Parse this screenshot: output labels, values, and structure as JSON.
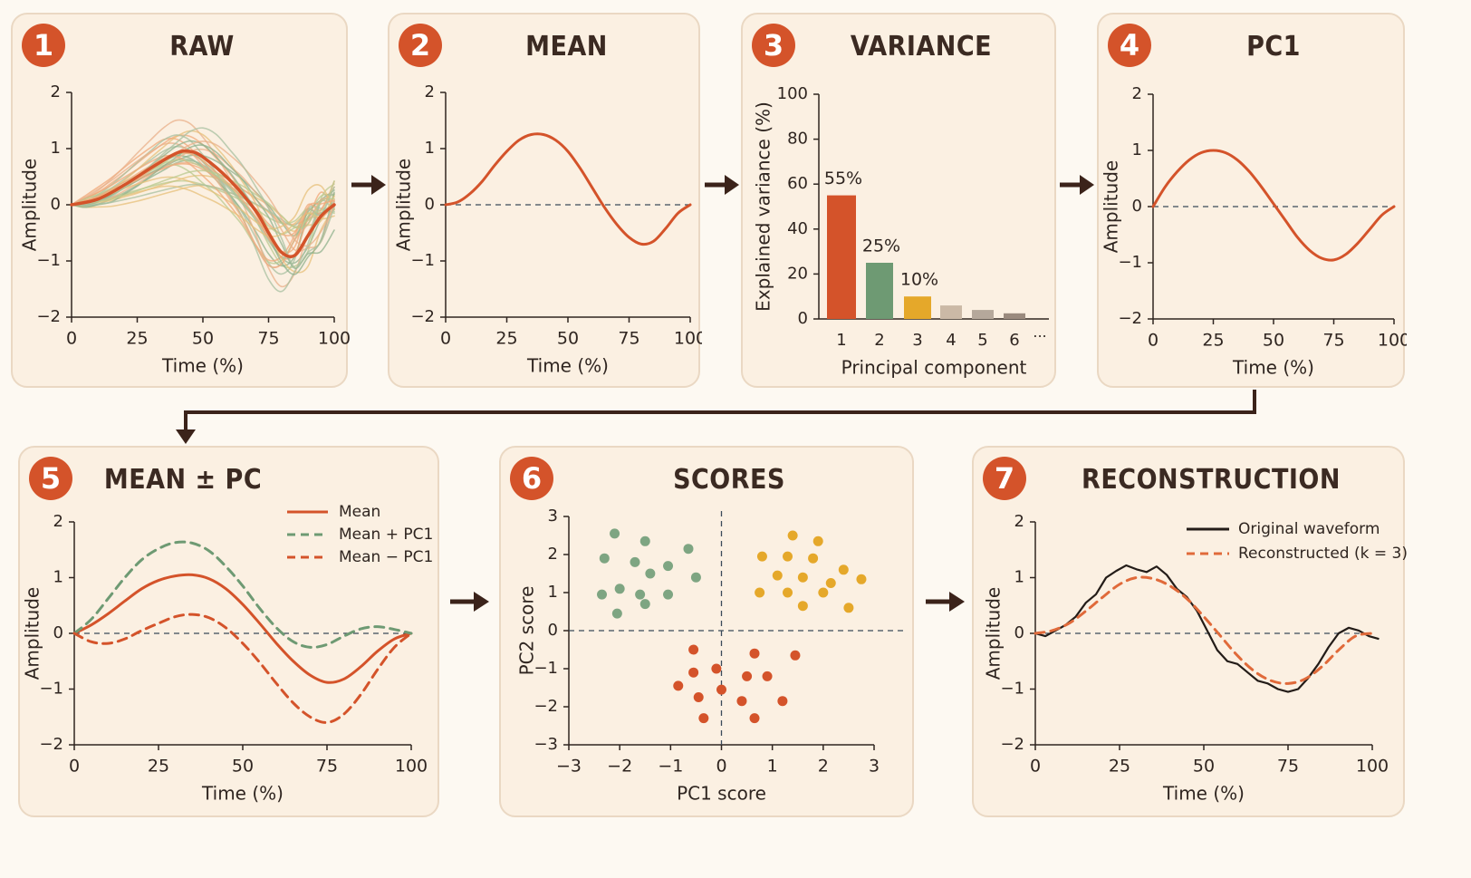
{
  "colors": {
    "accent": "#d4532a",
    "green": "#6e9a73",
    "yellow": "#e5a82a",
    "gray": "#b5a89b",
    "dark": "#2a1f1a"
  },
  "panels": [
    {
      "number": "1",
      "title": "RAW"
    },
    {
      "number": "2",
      "title": "MEAN"
    },
    {
      "number": "3",
      "title": "VARIANCE"
    },
    {
      "number": "4",
      "title": "PC1"
    },
    {
      "number": "5",
      "title": "MEAN ± PC"
    },
    {
      "number": "6",
      "title": "SCORES"
    },
    {
      "number": "7",
      "title": "RECONSTRUCTION"
    }
  ],
  "chart_data": [
    {
      "type": "line",
      "title": "RAW",
      "xlabel": "Time (%)",
      "ylabel": "Amplitude",
      "xlim": [
        0,
        100
      ],
      "ylim": [
        -2,
        2
      ],
      "xticks": [
        "0",
        "25",
        "50",
        "75",
        "100"
      ],
      "yticks": [
        "2",
        "1",
        "0",
        "−1",
        "−2"
      ],
      "series": [
        {
          "values_x": [
            0,
            10,
            20,
            30,
            40,
            45,
            50,
            60,
            70,
            75,
            80,
            85,
            90,
            95,
            100
          ],
          "values_y": [
            0,
            0.1,
            0.35,
            0.65,
            0.92,
            0.95,
            0.85,
            0.45,
            -0.1,
            -0.5,
            -0.85,
            -0.9,
            -0.55,
            -0.2,
            0
          ]
        }
      ],
      "background_curves": 30
    },
    {
      "type": "line",
      "title": "MEAN",
      "xlabel": "Time (%)",
      "ylabel": "Amplitude",
      "xlim": [
        0,
        100
      ],
      "ylim": [
        -2,
        2
      ],
      "xticks": [
        "0",
        "25",
        "50",
        "75",
        "100"
      ],
      "yticks": [
        "2",
        "1",
        "0",
        "−1",
        "−2"
      ],
      "series": [
        {
          "values_x": [
            0,
            5,
            10,
            15,
            20,
            25,
            30,
            35,
            40,
            45,
            50,
            55,
            60,
            65,
            70,
            75,
            80,
            85,
            90,
            95,
            100
          ],
          "values_y": [
            0,
            0.05,
            0.2,
            0.42,
            0.7,
            0.95,
            1.15,
            1.25,
            1.25,
            1.15,
            0.95,
            0.65,
            0.3,
            -0.05,
            -0.35,
            -0.58,
            -0.7,
            -0.65,
            -0.42,
            -0.15,
            0
          ]
        }
      ],
      "baseline": 0
    },
    {
      "type": "bar",
      "title": "VARIANCE",
      "xlabel": "Principal component",
      "ylabel": "Explained variance (%)",
      "ylim": [
        0,
        100
      ],
      "categories": [
        "1",
        "2",
        "3",
        "4",
        "5",
        "6"
      ],
      "extra_tick": "···",
      "values": [
        55,
        25,
        10,
        6,
        4,
        2.5
      ],
      "data_labels": [
        "55%",
        "25%",
        "10%",
        "",
        "",
        ""
      ],
      "bar_colors": [
        "#d4532a",
        "#6e9a73",
        "#e5a82a",
        "#cbb9a6",
        "#b5a89b",
        "#9a8a7e"
      ],
      "yticks": [
        "100",
        "80",
        "60",
        "40",
        "20",
        "0"
      ]
    },
    {
      "type": "line",
      "title": "PC1",
      "xlabel": "Time (%)",
      "ylabel": "Amplitude",
      "xlim": [
        0,
        100
      ],
      "ylim": [
        -2,
        2
      ],
      "xticks": [
        "0",
        "25",
        "50",
        "75",
        "100"
      ],
      "yticks": [
        "2",
        "1",
        "0",
        "−1",
        "−2"
      ],
      "series": [
        {
          "values_x": [
            0,
            5,
            10,
            15,
            20,
            25,
            30,
            35,
            40,
            45,
            50,
            55,
            60,
            65,
            70,
            75,
            80,
            85,
            90,
            95,
            100
          ],
          "values_y": [
            0,
            0.35,
            0.62,
            0.83,
            0.96,
            1.0,
            0.96,
            0.83,
            0.62,
            0.35,
            0.05,
            -0.25,
            -0.55,
            -0.78,
            -0.92,
            -0.95,
            -0.85,
            -0.65,
            -0.4,
            -0.15,
            0
          ]
        }
      ],
      "baseline": 0
    },
    {
      "type": "line",
      "title": "MEAN ± PC",
      "xlabel": "Time (%)",
      "ylabel": "Amplitude",
      "xlim": [
        0,
        100
      ],
      "ylim": [
        -2,
        2
      ],
      "xticks": [
        "0",
        "25",
        "50",
        "75",
        "100"
      ],
      "yticks": [
        "2",
        "1",
        "0",
        "−1",
        "−2"
      ],
      "series": [
        {
          "name": "Mean",
          "style": "solid",
          "values_x": [
            0,
            5,
            10,
            15,
            20,
            25,
            30,
            35,
            40,
            45,
            50,
            55,
            60,
            65,
            70,
            75,
            80,
            85,
            90,
            95,
            100
          ],
          "values_y": [
            0,
            0.15,
            0.35,
            0.58,
            0.8,
            0.95,
            1.03,
            1.05,
            0.98,
            0.8,
            0.52,
            0.18,
            -0.18,
            -0.5,
            -0.75,
            -0.88,
            -0.82,
            -0.6,
            -0.32,
            -0.1,
            0
          ]
        },
        {
          "name": "Mean + PC1",
          "style": "dashed",
          "values_x": [
            0,
            5,
            10,
            15,
            20,
            25,
            30,
            35,
            40,
            45,
            50,
            55,
            60,
            65,
            70,
            75,
            80,
            85,
            90,
            95,
            100
          ],
          "values_y": [
            0,
            0.25,
            0.62,
            1.0,
            1.32,
            1.52,
            1.63,
            1.62,
            1.48,
            1.2,
            0.85,
            0.45,
            0.1,
            -0.15,
            -0.25,
            -0.2,
            -0.05,
            0.08,
            0.12,
            0.07,
            0
          ]
        },
        {
          "name": "Mean − PC1",
          "style": "dashed",
          "values_x": [
            0,
            5,
            10,
            15,
            20,
            25,
            30,
            35,
            40,
            45,
            50,
            55,
            60,
            65,
            70,
            75,
            80,
            85,
            90,
            95,
            100
          ],
          "values_y": [
            0,
            -0.15,
            -0.18,
            -0.1,
            0.05,
            0.18,
            0.3,
            0.34,
            0.28,
            0.1,
            -0.18,
            -0.52,
            -0.9,
            -1.25,
            -1.5,
            -1.6,
            -1.45,
            -1.1,
            -0.65,
            -0.25,
            0
          ]
        }
      ],
      "legend": "top-right",
      "baseline": 0
    },
    {
      "type": "scatter",
      "title": "SCORES",
      "xlabel": "PC1 score",
      "ylabel": "PC2 score",
      "xlim": [
        -3,
        3
      ],
      "ylim": [
        -3,
        3
      ],
      "xticks": [
        "−3",
        "−2",
        "−1",
        "0",
        "1",
        "2",
        "3"
      ],
      "yticks": [
        "3",
        "2",
        "1",
        "0",
        "−1",
        "−2",
        "−3"
      ],
      "series": [
        {
          "color": "green",
          "points": [
            [
              -2.1,
              2.55
            ],
            [
              -1.5,
              2.35
            ],
            [
              -0.65,
              2.15
            ],
            [
              -2.3,
              1.9
            ],
            [
              -1.7,
              1.8
            ],
            [
              -1.05,
              1.7
            ],
            [
              -1.4,
              1.5
            ],
            [
              -0.5,
              1.4
            ],
            [
              -2.0,
              1.1
            ],
            [
              -2.35,
              0.95
            ],
            [
              -1.6,
              0.95
            ],
            [
              -1.05,
              0.95
            ],
            [
              -1.5,
              0.7
            ],
            [
              -2.05,
              0.45
            ]
          ]
        },
        {
          "color": "yellow",
          "points": [
            [
              1.4,
              2.5
            ],
            [
              1.9,
              2.35
            ],
            [
              0.8,
              1.95
            ],
            [
              1.3,
              1.95
            ],
            [
              1.8,
              1.9
            ],
            [
              2.4,
              1.6
            ],
            [
              1.1,
              1.45
            ],
            [
              1.6,
              1.4
            ],
            [
              2.75,
              1.35
            ],
            [
              2.15,
              1.25
            ],
            [
              0.75,
              1.0
            ],
            [
              1.3,
              1.0
            ],
            [
              2.0,
              1.0
            ],
            [
              1.6,
              0.65
            ],
            [
              2.5,
              0.6
            ]
          ]
        },
        {
          "color": "accent",
          "points": [
            [
              -0.55,
              -0.5
            ],
            [
              0.65,
              -0.6
            ],
            [
              1.45,
              -0.65
            ],
            [
              -0.1,
              -1.0
            ],
            [
              -0.55,
              -1.1
            ],
            [
              0.5,
              -1.2
            ],
            [
              0.9,
              -1.2
            ],
            [
              -0.85,
              -1.45
            ],
            [
              0.0,
              -1.55
            ],
            [
              -0.45,
              -1.75
            ],
            [
              0.4,
              -1.85
            ],
            [
              1.2,
              -1.85
            ],
            [
              -0.35,
              -2.3
            ],
            [
              0.65,
              -2.3
            ]
          ]
        }
      ],
      "crosshair": [
        0,
        0
      ]
    },
    {
      "type": "line",
      "title": "RECONSTRUCTION",
      "xlabel": "Time (%)",
      "ylabel": "Amplitude",
      "xlim": [
        0,
        100
      ],
      "ylim": [
        -2,
        2
      ],
      "xticks": [
        "0",
        "25",
        "50",
        "75",
        "100"
      ],
      "yticks": [
        "2",
        "1",
        "0",
        "−1",
        "−2"
      ],
      "series": [
        {
          "name": "Original waveform",
          "style": "solid",
          "values_x": [
            0,
            3,
            6,
            9,
            12,
            15,
            18,
            21,
            24,
            27,
            30,
            33,
            36,
            39,
            42,
            45,
            48,
            51,
            54,
            57,
            60,
            63,
            66,
            69,
            72,
            75,
            78,
            81,
            84,
            87,
            90,
            93,
            96,
            99,
            102
          ],
          "values_y": [
            0,
            -0.05,
            0.05,
            0.15,
            0.3,
            0.55,
            0.7,
            1.0,
            1.12,
            1.22,
            1.15,
            1.1,
            1.2,
            1.05,
            0.8,
            0.65,
            0.4,
            0.05,
            -0.3,
            -0.5,
            -0.55,
            -0.7,
            -0.85,
            -0.9,
            -1.0,
            -1.05,
            -1.0,
            -0.8,
            -0.55,
            -0.25,
            0.0,
            0.1,
            0.05,
            -0.05,
            -0.1
          ]
        },
        {
          "name": "Reconstructed (k = 3)",
          "style": "dashed",
          "values_x": [
            0,
            5,
            10,
            15,
            20,
            25,
            30,
            35,
            40,
            45,
            50,
            55,
            60,
            65,
            70,
            75,
            80,
            85,
            90,
            95,
            100
          ],
          "values_y": [
            0,
            0.05,
            0.18,
            0.4,
            0.65,
            0.88,
            1.0,
            0.98,
            0.85,
            0.62,
            0.3,
            -0.05,
            -0.4,
            -0.68,
            -0.85,
            -0.9,
            -0.82,
            -0.6,
            -0.3,
            -0.05,
            0
          ]
        }
      ],
      "legend": "top-right",
      "baseline": 0
    }
  ]
}
